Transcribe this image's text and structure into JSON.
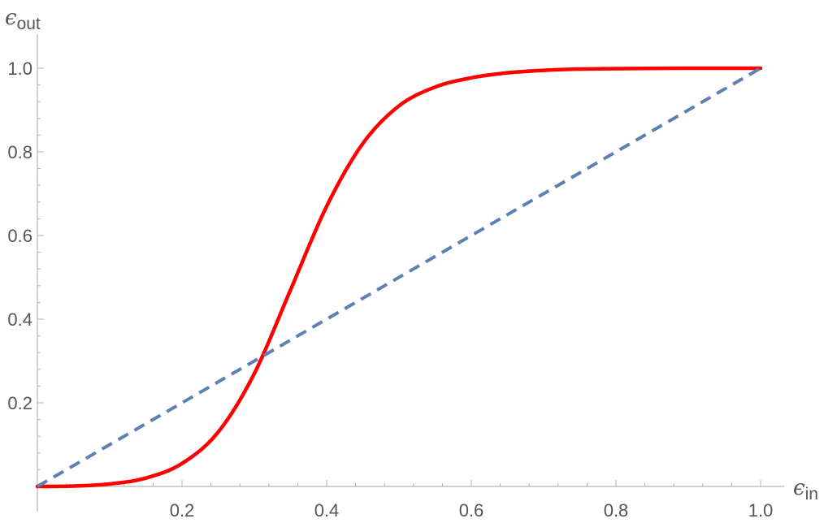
{
  "chart_data": {
    "type": "line",
    "title": "",
    "xlabel": {
      "symbol": "ϵ",
      "subscript": "in"
    },
    "ylabel": {
      "symbol": "ϵ",
      "subscript": "out"
    },
    "xlim": [
      0,
      1
    ],
    "ylim": [
      0,
      1
    ],
    "x_ticks": [
      0.2,
      0.4,
      0.6,
      0.8,
      1.0
    ],
    "x_tick_labels": [
      "0.2",
      "0.4",
      "0.6",
      "0.8",
      "1.0"
    ],
    "y_ticks": [
      0.2,
      0.4,
      0.6,
      0.8,
      1.0
    ],
    "y_tick_labels": [
      "0.2",
      "0.4",
      "0.6",
      "0.8",
      "1.0"
    ],
    "grid": false,
    "series": [
      {
        "style": "solid",
        "color": "#ff0000",
        "x": [
          0.0,
          0.05,
          0.1,
          0.15,
          0.2,
          0.25,
          0.3,
          0.35,
          0.4,
          0.45,
          0.5,
          0.55,
          0.6,
          0.65,
          0.7,
          0.75,
          0.8,
          0.9,
          1.0
        ],
        "y": [
          0.0,
          0.001,
          0.006,
          0.02,
          0.055,
          0.13,
          0.27,
          0.47,
          0.67,
          0.82,
          0.91,
          0.955,
          0.977,
          0.989,
          0.995,
          0.998,
          0.999,
          1.0,
          1.0
        ]
      },
      {
        "style": "dashed",
        "color": "#5e81b5",
        "x": [
          0.0,
          1.0
        ],
        "y": [
          0.0,
          1.0
        ]
      }
    ]
  }
}
